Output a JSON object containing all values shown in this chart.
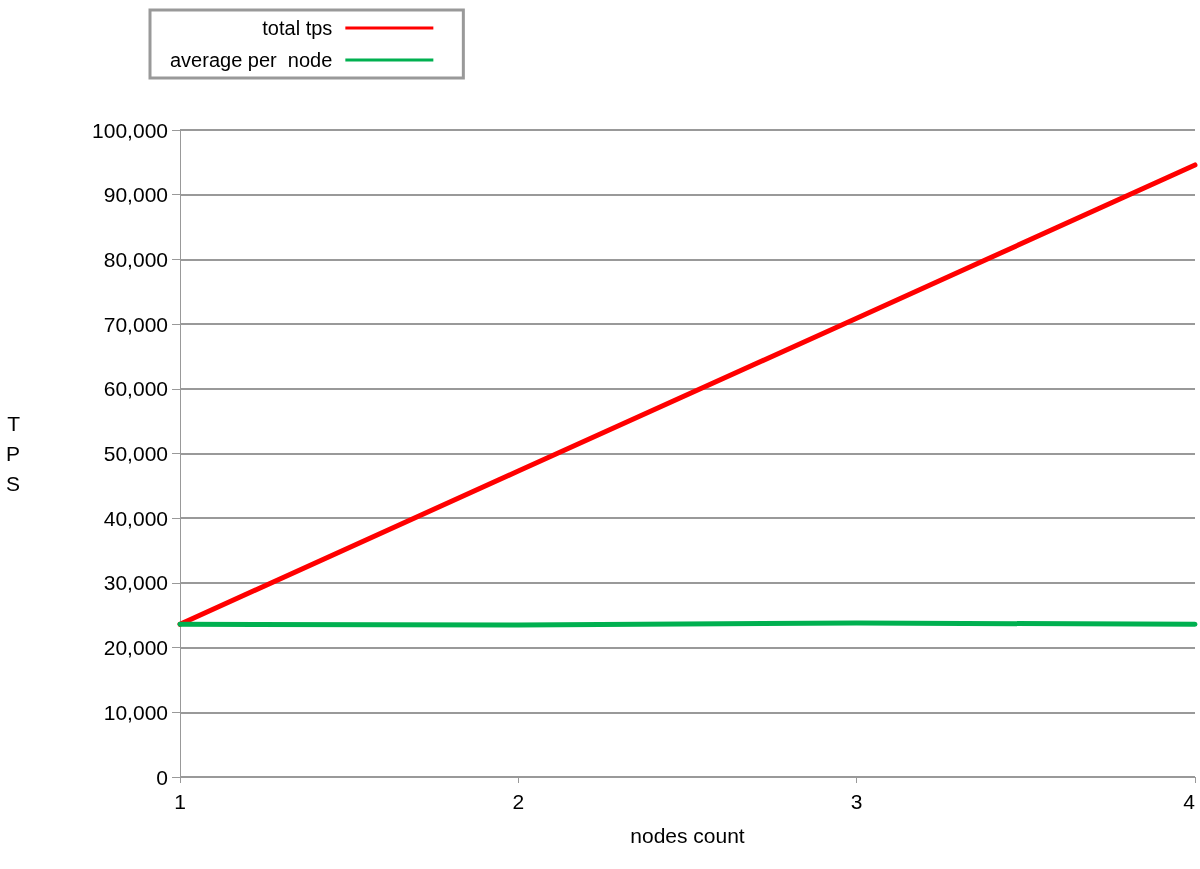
{
  "chart_data": {
    "type": "line",
    "xlabel": "nodes count",
    "ylabel": "TPS",
    "x": [
      1,
      2,
      3,
      4
    ],
    "xlim": [
      1,
      4
    ],
    "xticks": [
      1,
      2,
      3,
      4
    ],
    "ylim": [
      0,
      100000
    ],
    "yticks": [
      0,
      {
        "value": 10000,
        "label": "10,000"
      },
      {
        "value": 20000,
        "label": "20,000"
      },
      {
        "value": 30000,
        "label": "30,000"
      },
      {
        "value": 40000,
        "label": "40,000"
      },
      {
        "value": 50000,
        "label": "50,000"
      },
      {
        "value": 60000,
        "label": "60,000"
      },
      {
        "value": 70000,
        "label": "70,000"
      },
      {
        "value": 80000,
        "label": "80,000"
      },
      {
        "value": 90000,
        "label": "90,000"
      },
      {
        "value": 100000,
        "label": "100,000"
      }
    ],
    "series": [
      {
        "name": "total tps",
        "color": "#ff0000",
        "values": [
          23600,
          47300,
          70900,
          94600
        ]
      },
      {
        "name": "average per  node",
        "color": "#00b050",
        "values": [
          23600,
          23500,
          23800,
          23600
        ]
      }
    ],
    "grid": "y",
    "legend": "top left",
    "marker": "none",
    "line_style": "solid"
  }
}
